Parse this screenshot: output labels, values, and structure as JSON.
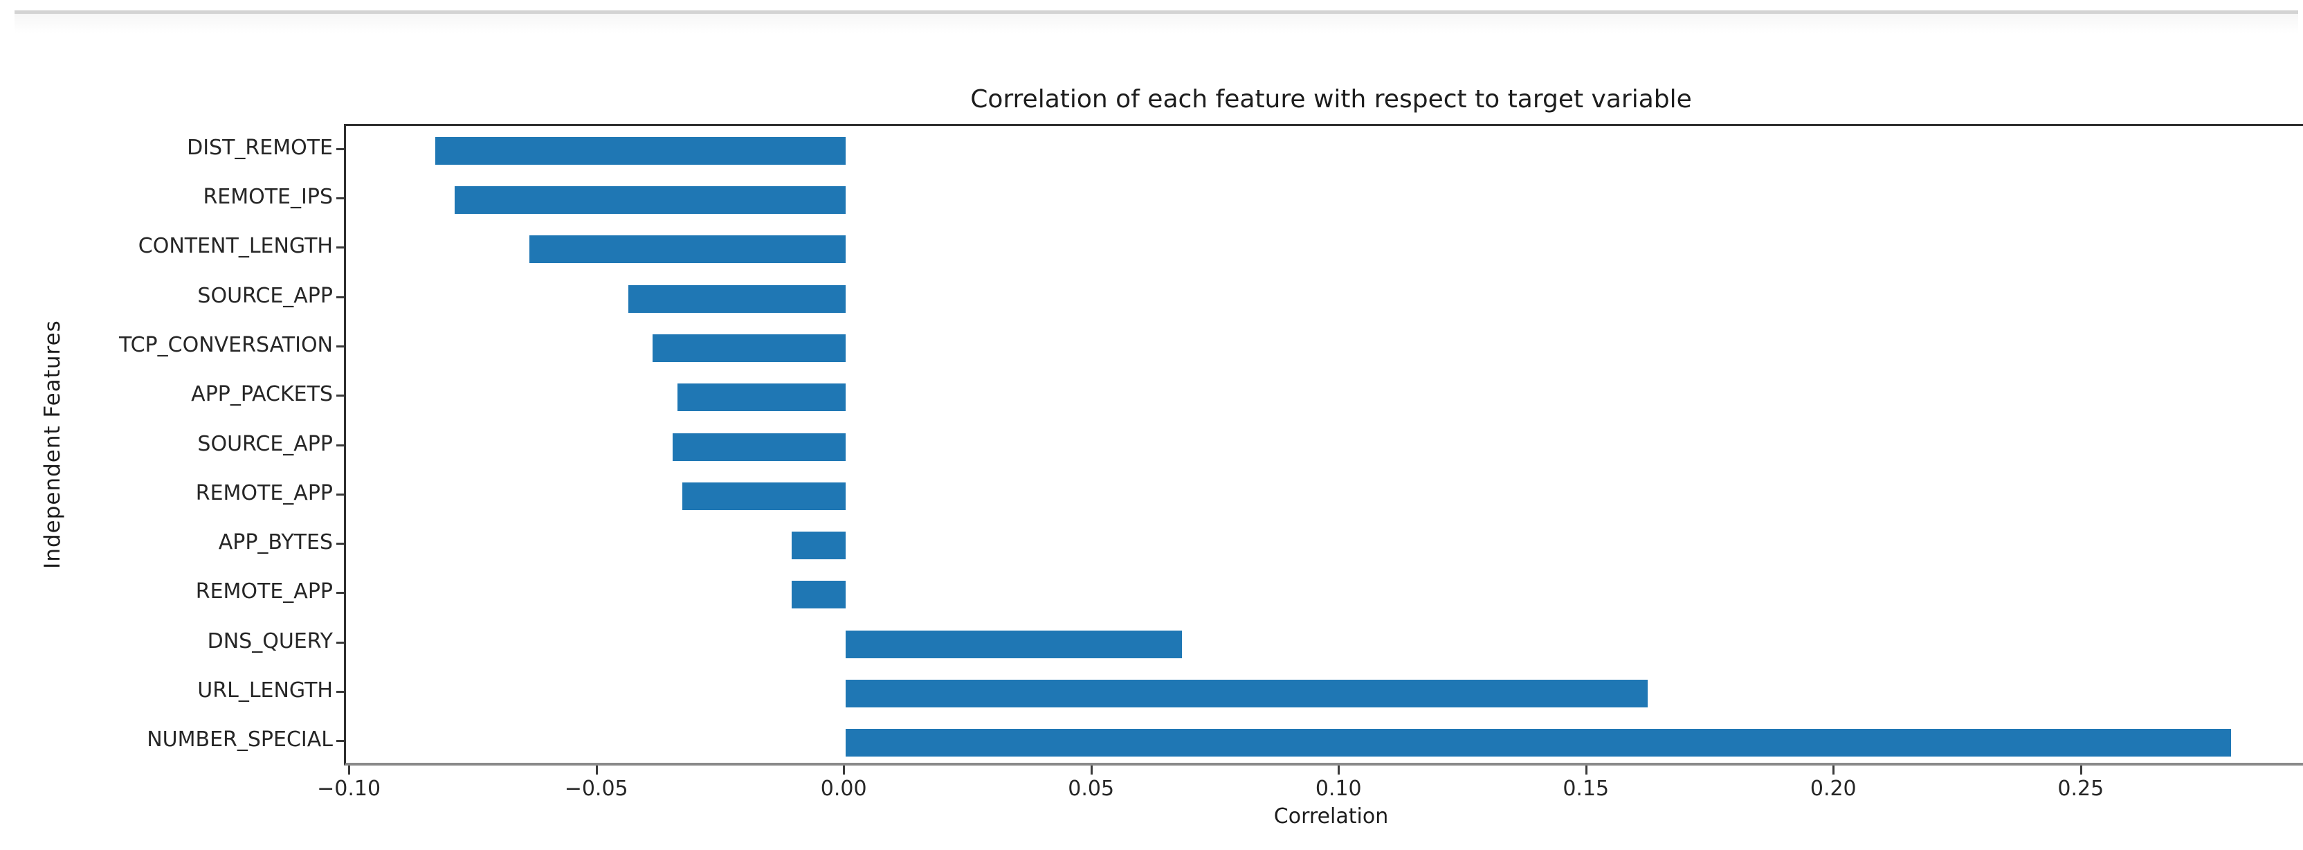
{
  "page": {
    "background": "#ffffff",
    "top_divider_color": "#d3d3d3"
  },
  "chart_data": {
    "type": "bar",
    "orientation": "horizontal",
    "title": "Correlation of each feature with respect to target variable",
    "xlabel": "Correlation",
    "ylabel": "Independent Features",
    "categories": [
      "DIST_REMOTE",
      "REMOTE_IPS",
      "CONTENT_LENGTH",
      "SOURCE_APP",
      "TCP_CONVERSATION",
      "APP_PACKETS",
      "SOURCE_APP",
      "REMOTE_APP",
      "APP_BYTES",
      "REMOTE_APP",
      "DNS_QUERY",
      "URL_LENGTH",
      "NUMBER_SPECIAL"
    ],
    "values": [
      -0.083,
      -0.079,
      -0.064,
      -0.044,
      -0.039,
      -0.034,
      -0.035,
      -0.033,
      -0.011,
      -0.011,
      0.068,
      0.162,
      0.28
    ],
    "xlim": [
      -0.101,
      0.298
    ],
    "xticks": [
      -0.1,
      -0.05,
      0.0,
      0.05,
      0.1,
      0.15,
      0.2,
      0.25
    ],
    "xtick_labels": [
      "−0.10",
      "−0.05",
      "0.00",
      "0.05",
      "0.10",
      "0.15",
      "0.20",
      "0.25"
    ],
    "bar_color": "#1f77b4",
    "grid": false,
    "legend": null
  }
}
